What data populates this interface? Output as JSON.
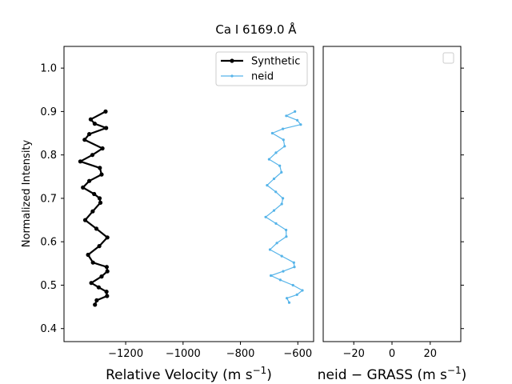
{
  "chart_data": [
    {
      "type": "line",
      "title": "Ca I 6169.0 Å",
      "xlabel": "Relative Velocity (m s",
      "xlabel_sup": "−1",
      "xlabel_close": ")",
      "ylabel": "Normalized Intensity",
      "xlim": [
        -1415,
        -545
      ],
      "ylim": [
        0.37,
        1.05
      ],
      "xticks": [
        -1200,
        -1000,
        -800,
        -600
      ],
      "xtick_labels": [
        "−1200",
        "−1000",
        "−800",
        "−600"
      ],
      "yticks": [
        0.4,
        0.5,
        0.6,
        0.7,
        0.8,
        0.9,
        1.0
      ],
      "ytick_labels": [
        "0.4",
        "0.5",
        "0.6",
        "0.7",
        "0.8",
        "0.9",
        "1.0"
      ],
      "legend_position": "top-right",
      "grid": false,
      "series": [
        {
          "name": "Synthetic",
          "color": "#000000",
          "points": [
            [
              -1307,
              0.455
            ],
            [
              -1301,
              0.465
            ],
            [
              -1265,
              0.475
            ],
            [
              -1267,
              0.485
            ],
            [
              -1294,
              0.495
            ],
            [
              -1320,
              0.505
            ],
            [
              -1284,
              0.52
            ],
            [
              -1264,
              0.532
            ],
            [
              -1266,
              0.542
            ],
            [
              -1314,
              0.552
            ],
            [
              -1331,
              0.57
            ],
            [
              -1292,
              0.59
            ],
            [
              -1264,
              0.61
            ],
            [
              -1302,
              0.63
            ],
            [
              -1341,
              0.65
            ],
            [
              -1315,
              0.67
            ],
            [
              -1288,
              0.69
            ],
            [
              -1291,
              0.7
            ],
            [
              -1310,
              0.71
            ],
            [
              -1349,
              0.725
            ],
            [
              -1327,
              0.74
            ],
            [
              -1284,
              0.755
            ],
            [
              -1290,
              0.77
            ],
            [
              -1358,
              0.785
            ],
            [
              -1316,
              0.8
            ],
            [
              -1281,
              0.815
            ],
            [
              -1343,
              0.835
            ],
            [
              -1327,
              0.848
            ],
            [
              -1268,
              0.862
            ],
            [
              -1308,
              0.872
            ],
            [
              -1322,
              0.882
            ],
            [
              -1270,
              0.9
            ]
          ]
        },
        {
          "name": "neid",
          "color": "#56b4e9",
          "points": [
            [
              -630,
              0.46
            ],
            [
              -638,
              0.47
            ],
            [
              -603,
              0.478
            ],
            [
              -584,
              0.488
            ],
            [
              -617,
              0.5
            ],
            [
              -661,
              0.512
            ],
            [
              -694,
              0.522
            ],
            [
              -651,
              0.532
            ],
            [
              -612,
              0.542
            ],
            [
              -614,
              0.552
            ],
            [
              -656,
              0.567
            ],
            [
              -697,
              0.582
            ],
            [
              -673,
              0.597
            ],
            [
              -640,
              0.612
            ],
            [
              -641,
              0.627
            ],
            [
              -676,
              0.642
            ],
            [
              -712,
              0.657
            ],
            [
              -683,
              0.672
            ],
            [
              -656,
              0.687
            ],
            [
              -652,
              0.7
            ],
            [
              -677,
              0.715
            ],
            [
              -707,
              0.73
            ],
            [
              -683,
              0.745
            ],
            [
              -657,
              0.76
            ],
            [
              -663,
              0.775
            ],
            [
              -700,
              0.79
            ],
            [
              -676,
              0.805
            ],
            [
              -646,
              0.82
            ],
            [
              -650,
              0.835
            ],
            [
              -689,
              0.85
            ],
            [
              -652,
              0.86
            ],
            [
              -590,
              0.87
            ],
            [
              -602,
              0.88
            ],
            [
              -640,
              0.89
            ],
            [
              -610,
              0.9
            ]
          ]
        }
      ]
    },
    {
      "type": "line",
      "xlabel": "neid  −  GRASS (m s",
      "xlabel_sup": "−1",
      "xlabel_close": ")",
      "xlim": [
        -36,
        36
      ],
      "ylim": [
        0.37,
        1.05
      ],
      "xticks": [
        -20,
        0,
        20
      ],
      "xtick_labels": [
        "−20",
        "0",
        "20"
      ],
      "legend_position": "top-right",
      "grid": false,
      "series": []
    }
  ]
}
